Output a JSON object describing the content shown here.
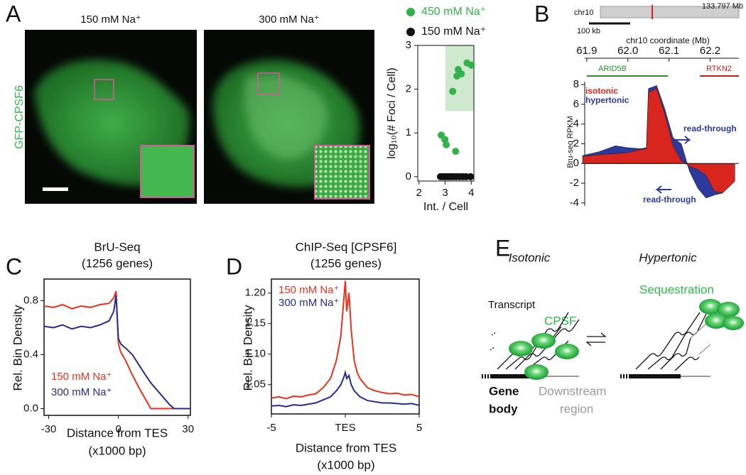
{
  "panel_labels": [
    "A",
    "B",
    "C",
    "D",
    "E"
  ],
  "microscopy": {
    "y_label": "GFP-CPSF6",
    "images": [
      "150 mM Na⁺",
      "300 mM Na⁺"
    ]
  },
  "chart_data": [
    {
      "type": "scatter",
      "x_label": "Int. / Cell",
      "y_label": "log₁₀(# Foci / Cell)",
      "xlim": [
        1.95,
        4.1
      ],
      "ylim": [
        -0.1,
        3
      ],
      "xticks": [
        2,
        3,
        4
      ],
      "yticks": [
        0,
        1,
        2,
        3
      ],
      "highlight_x": [
        3.01,
        4.1
      ],
      "highlight_y": [
        1.5,
        3
      ],
      "highlight_color": "#cfe9cf",
      "series": [
        {
          "name": "450 mM Na⁺",
          "color": "#33b14a",
          "x": [
            3.29,
            3.45,
            3.5,
            3.84,
            4.0,
            3.62,
            2.85,
            2.99,
            3.04,
            3.4
          ],
          "values": [
            1.95,
            2.3,
            2.45,
            2.6,
            2.55,
            2.35,
            0.95,
            0.85,
            0.73,
            0.58
          ]
        },
        {
          "name": "150 mM Na⁺",
          "color": "#111111",
          "x": [
            2.82,
            2.93,
            3.0,
            3.1,
            3.2,
            3.3,
            3.42,
            3.55,
            3.68,
            3.8,
            3.97
          ],
          "values": [
            0,
            0,
            0,
            0,
            0,
            0,
            0,
            0,
            0,
            0,
            0
          ]
        }
      ]
    },
    {
      "type": "area",
      "ideogram_label": "chr10",
      "ideogram_position_label": "133.797 Mb",
      "scale_label": "100 kb",
      "x_label": "chr10 coordinate (Mb)",
      "y_label": "Bru-seq RPKM",
      "genes": [
        "ARID5B",
        "RTKN2"
      ],
      "annotations": [
        "read-through",
        "read-through"
      ],
      "xlim": [
        61.895,
        62.27
      ],
      "ylim": [
        -4.3,
        8.3
      ],
      "xticks": [
        61.9,
        {
          "value": 62,
          "label": "62.0"
        },
        62.1,
        62.2
      ],
      "yticks": [
        -4,
        -2,
        0,
        2,
        4,
        6,
        8
      ],
      "x": [
        61.89,
        61.93,
        61.97,
        62.0,
        62.03,
        62.045,
        62.05,
        62.07,
        62.09,
        62.11,
        62.13,
        62.15,
        62.17,
        62.19,
        62.21,
        62.23,
        62.26
      ],
      "series": [
        {
          "name": "hypertonic",
          "color": "#2c3a9e",
          "values": [
            0.8,
            1.2,
            1.8,
            1.6,
            1.5,
            1.6,
            7.6,
            7.9,
            5.5,
            2.6,
            2.0,
            -0.8,
            -2.5,
            -3.5,
            -3.2,
            -3.0,
            -0.6
          ]
        },
        {
          "name": "isotonic",
          "color": "#d8261e",
          "values": [
            0.7,
            0.9,
            1.0,
            1.1,
            1.4,
            1.5,
            7.2,
            7.6,
            5.0,
            1.8,
            0.3,
            -0.3,
            -0.6,
            -1.2,
            -2.8,
            -3.0,
            -1.8
          ]
        }
      ]
    },
    {
      "type": "line",
      "title": "BrU-Seq",
      "subtitle": "(1256 genes)",
      "x_label": "Distance from TES",
      "x_label_2": "(x1000 bp)",
      "y_label": "Rel. Bin Density",
      "xlim": [
        -32,
        31
      ],
      "ylim": [
        -0.05,
        0.96
      ],
      "xticks": [
        -30,
        0,
        30
      ],
      "yticks": [
        {
          "value": 0,
          "label": "0.0"
        },
        0.4,
        0.8
      ],
      "x": [
        -32,
        -28,
        -24,
        -20,
        -16,
        -12,
        -8,
        -4,
        -2,
        -1,
        0,
        1,
        3,
        6,
        9,
        12,
        14,
        18,
        22,
        24,
        26,
        31
      ],
      "series": [
        {
          "name": "150 mM Na⁺",
          "color": "#e8321e",
          "values": [
            0.76,
            0.75,
            0.77,
            0.74,
            0.76,
            0.75,
            0.77,
            0.78,
            0.82,
            0.87,
            0.48,
            0.42,
            0.36,
            0.25,
            0.15,
            0.06,
            0.0,
            0.0,
            0.0,
            0.0,
            0.0,
            0.0
          ]
        },
        {
          "name": "300 mM Na⁺",
          "color": "#2a2a8c",
          "values": [
            0.61,
            0.6,
            0.62,
            0.59,
            0.61,
            0.6,
            0.62,
            0.65,
            0.72,
            0.84,
            0.52,
            0.48,
            0.45,
            0.4,
            0.32,
            0.24,
            0.19,
            0.11,
            0.03,
            0.0,
            0.0,
            0.0
          ]
        }
      ]
    },
    {
      "type": "line",
      "title": "ChIP-Seq [CPSF6]",
      "subtitle": "(1256 genes)",
      "x_label": "Distance from TES",
      "x_label_2": "(x1000 bp)",
      "y_label": "Rel. Bin Density",
      "xlim": [
        -5,
        5
      ],
      "ylim": [
        1.002,
        1.223
      ],
      "xticks": [
        -5,
        {
          "value": 0,
          "label": "TES"
        },
        5
      ],
      "yticks": [
        1.05,
        {
          "value": 1.1,
          "label": "1.10"
        },
        1.15,
        {
          "value": 1.2,
          "label": "1.20"
        }
      ],
      "x": [
        -5,
        -4.5,
        -4,
        -3.5,
        -3,
        -2.5,
        -2,
        -1.5,
        -1,
        -0.6,
        -0.3,
        -0.1,
        0,
        0.1,
        0.25,
        0.4,
        0.6,
        0.8,
        1,
        1.5,
        2,
        2.5,
        3,
        3.5,
        4,
        4.5,
        5
      ],
      "series": [
        {
          "name": "150 mM Na⁺",
          "color": "#e8321e",
          "values": [
            1.028,
            1.03,
            1.027,
            1.031,
            1.03,
            1.033,
            1.035,
            1.045,
            1.06,
            1.09,
            1.13,
            1.19,
            1.22,
            1.17,
            1.2,
            1.14,
            1.09,
            1.07,
            1.06,
            1.045,
            1.04,
            1.037,
            1.035,
            1.036,
            1.033,
            1.034,
            1.03
          ]
        },
        {
          "name": "300 mM Na⁺",
          "color": "#2a2a8c",
          "values": [
            1.015,
            1.016,
            1.014,
            1.017,
            1.016,
            1.018,
            1.02,
            1.025,
            1.03,
            1.04,
            1.05,
            1.062,
            1.07,
            1.06,
            1.065,
            1.05,
            1.04,
            1.035,
            1.03,
            1.024,
            1.022,
            1.02,
            1.02,
            1.019,
            1.018,
            1.019,
            1.016
          ]
        }
      ]
    }
  ],
  "diagram": {
    "left_title": "Isotonic",
    "right_title": "Hypertonic",
    "transcript": "Transcript",
    "cpsf": "CPSF",
    "sequestration": "Sequestration",
    "gene_body": [
      "Gene",
      "body"
    ],
    "downstream": [
      "Downstream",
      "region"
    ]
  }
}
